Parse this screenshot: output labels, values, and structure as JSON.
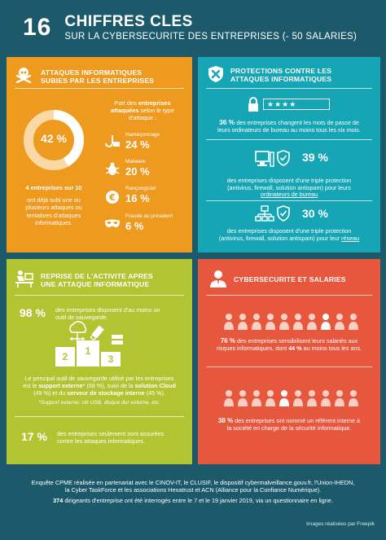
{
  "header": {
    "number": "16",
    "title": "CHIFFRES CLES",
    "subtitle": "SUR LA CYBERSECURITE DES ENTREPRISES (- 50 SALARIES)"
  },
  "attacks": {
    "title_l1": "ATTAQUES INFORMATIQUES",
    "title_l2": "SUBIES PAR LES ENTREPRISES",
    "donut_label": "42 %",
    "donut_fraction": 0.42,
    "stat_bold": "4 entreprises sur 10",
    "stat_l1": "ont déjà subi une ou",
    "stat_l2": "plusieurs attaques ou",
    "stat_l3": "tentatives d'attaques",
    "stat_l4": "informatiques.",
    "intro_l1a": "Part des ",
    "intro_l1b": "entreprises",
    "intro_l2a": "attaquées",
    "intro_l2b": " selon le type",
    "intro_l3": "d'attaque :",
    "types": [
      {
        "label": "Hameçonnage",
        "value": "24 %",
        "icon": "fishing-hook-icon"
      },
      {
        "label": "Malware",
        "value": "20 %",
        "icon": "bug-icon"
      },
      {
        "label": "Rançongiciel",
        "value": "16 %",
        "icon": "ransom-icon"
      },
      {
        "label": "Fraude au président",
        "value": "6 %",
        "icon": "mask-icon"
      }
    ]
  },
  "protections": {
    "title_l1": "PROTECTIONS CONTRE LES",
    "title_l2": "ATTAQUES INFORMATIQUES",
    "password_mask": "★★★★",
    "s1_pct": "36 %",
    "s1_l1": " des entreprises changent les mots de passe de",
    "s1_l2": "leurs ordinateurs de bureau au moins tous les six mois.",
    "s2_pct": "39 %",
    "s2_l1": "des entreprises disposent d'une triple protection",
    "s2_l2": "(antivirus, firewall, solution antispam) pour leurs",
    "s2_l3": "ordinateurs de bureau",
    "s3_pct": "30 %",
    "s3_l1": "des entreprises disposent d'une triple protection",
    "s3_l2a": "(antivirus, firewall, solution antispam) pour leur ",
    "s3_l2b": "réseau"
  },
  "recovery": {
    "title_l1": "REPRISE DE L'ACTIVITE APRES",
    "title_l2": "UNE ATTAQUE INFORMATIQUE",
    "s1_pct": "98 %",
    "s1_l1": "des entreprises disposent d'au moins un",
    "s1_l2": "outil de sauvegarde.",
    "podium": [
      "1",
      "2",
      "3"
    ],
    "s2_l1": "Le principal outil de sauvegarde utilisé par les entreprises",
    "s2_l2a": "est le ",
    "s2_l2b": "support externe",
    "s2_l2c": "* (68 %), suivi de la ",
    "s2_l2d": "solution Cloud",
    "s2_l3a": "(49 %) et du ",
    "s2_l3b": "serveur de stockage interne",
    "s2_l3c": " (45 %).",
    "s2_note": "*Support externe: clé USB, disque dur externe, etc.",
    "s3_pct": "17 %",
    "s3_l1": "des entreprises seulement sont assurées",
    "s3_l2": "contre les attaques informatiques."
  },
  "employees": {
    "title": "CYBERSECURITE ET SALARIES",
    "s1_pct": "76 %",
    "s1_l1": " des entreprises sensibilisent leurs salariés aux",
    "s1_l2a": "risques informatiques, dont ",
    "s1_l2b": "44 %",
    "s1_l2c": " au moins tous les ans.",
    "s2_pct": "38 %",
    "s2_l1": " des entreprises ont nommé un référent interne à",
    "s2_l2": "la société en charge de la sécurité informatique."
  },
  "footer": {
    "l1": "Enquête CPME réalisée en partenariat avec le CINOV-IT, le CLUSIF, le dispositif cybermalveillance.gouv.fr, l'Union-IHEDN,",
    "l2": "la Cyber TaskForce et les associations Hexatrust et ACN (Alliance pour la Confiance Numérique).",
    "l3a": "374",
    "l3b": " dirigeants d'entreprise ont été interrogés entre le 7 et le 19 janvier 2019, via un questionnaire en ligne.",
    "credit": "Images réalisées par Freepik"
  },
  "colors": {
    "background": "#1c5a6b",
    "orange": "#ee9a1f",
    "teal": "#15a5b4",
    "lime": "#b3c433",
    "red": "#e6573e"
  }
}
